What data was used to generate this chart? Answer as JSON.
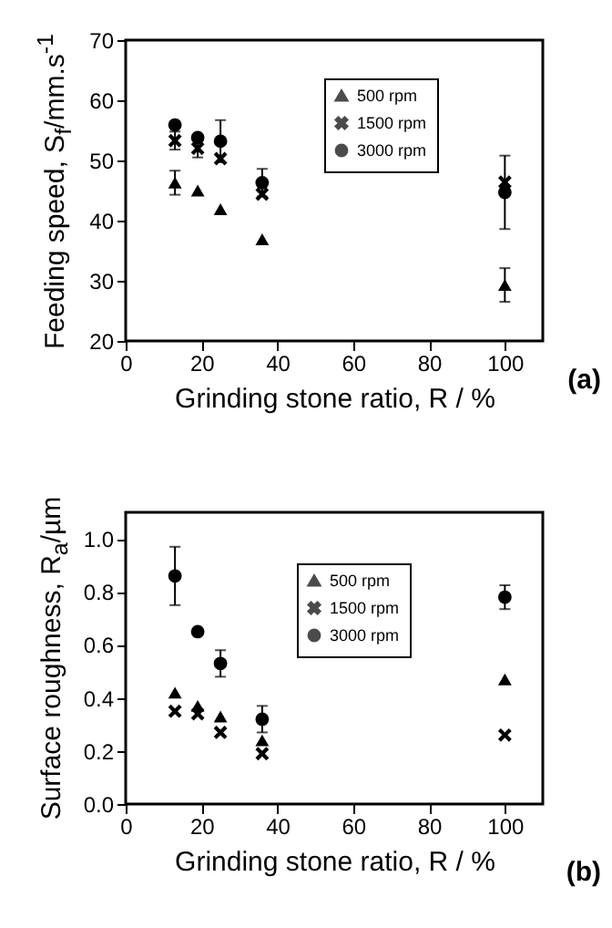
{
  "chart_data": [
    {
      "type": "scatter",
      "xlabel": "Grinding stone ratio, R / %",
      "ylabel": "Feeding speed, S$_{f}$/mm.s$^{-1}$",
      "x": [
        13,
        19,
        25,
        36,
        100
      ],
      "xlim": [
        0,
        110
      ],
      "xticks": [
        0,
        20,
        40,
        60,
        80,
        100
      ],
      "ylim": [
        20,
        70
      ],
      "yticks": [
        20,
        30,
        40,
        50,
        60,
        70
      ],
      "grid": false,
      "legend": "top right",
      "annotations": [
        "(a)"
      ],
      "series": [
        {
          "name": "500 rpm",
          "color": "#000000",
          "marker": "triangle",
          "values": [
            46.3,
            45.0,
            41.9,
            36.9,
            29.3
          ],
          "errors": [
            2,
            null,
            null,
            null,
            2.8
          ]
        },
        {
          "name": "1500 rpm",
          "color": "#000000",
          "marker": "cross",
          "values": [
            53.3,
            52.0,
            50.3,
            44.4,
            46.4
          ],
          "errors": [
            1.5,
            1.5,
            null,
            null,
            null
          ]
        },
        {
          "name": "3000 rpm",
          "color": "#000000",
          "marker": "circle",
          "values": [
            55.9,
            53.8,
            53.2,
            46.3,
            44.7
          ],
          "errors": [
            null,
            null,
            3.5,
            2.3,
            6.1
          ]
        }
      ]
    },
    {
      "type": "scatter",
      "xlabel": "Grinding stone ratio, R / %",
      "ylabel": "Surface roughness, R$_{a}$/µm",
      "x": [
        13,
        19,
        25,
        36,
        100
      ],
      "xlim": [
        0,
        110
      ],
      "xticks": [
        0,
        20,
        40,
        60,
        80,
        100
      ],
      "ylim": [
        0,
        1.1
      ],
      "yticks": [
        {
          "value": 0,
          "label": "0.0"
        },
        {
          "value": 0.2,
          "label": "0.2"
        },
        {
          "value": 0.4,
          "label": "0.4"
        },
        {
          "value": 0.6,
          "label": "0.6"
        },
        {
          "value": 0.8,
          "label": "0.8"
        },
        {
          "value": 1,
          "label": "1.0"
        }
      ],
      "grid": false,
      "legend": "top right",
      "annotations": [
        "(b)"
      ],
      "series": [
        {
          "name": "500 rpm",
          "color": "#000000",
          "marker": "triangle",
          "values": [
            0.42,
            0.37,
            0.33,
            0.24,
            0.47
          ]
        },
        {
          "name": "1500 rpm",
          "color": "#000000",
          "marker": "cross",
          "values": [
            0.35,
            0.34,
            0.27,
            0.19,
            0.26
          ]
        },
        {
          "name": "3000 rpm",
          "color": "#000000",
          "marker": "circle",
          "values": [
            0.86,
            0.65,
            0.53,
            0.32,
            0.78
          ],
          "errors": [
            0.11,
            null,
            0.05,
            0.05,
            0.045
          ]
        }
      ]
    }
  ]
}
